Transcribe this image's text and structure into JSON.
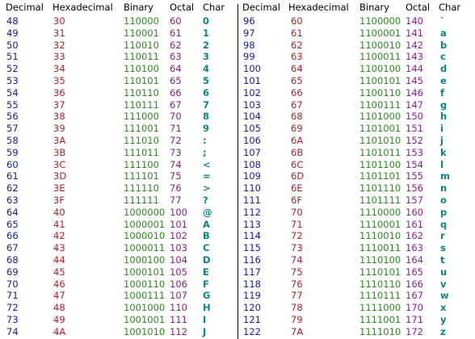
{
  "headers": {
    "decimal": "Decimal",
    "hexadecimal": "Hexadecimal",
    "binary": "Binary",
    "octal": "Octal",
    "char": "Char"
  },
  "left_rows": [
    {
      "dec": "48",
      "hex": "30",
      "bin": "110000",
      "oct": "60",
      "chr": "0"
    },
    {
      "dec": "49",
      "hex": "31",
      "bin": "110001",
      "oct": "61",
      "chr": "1"
    },
    {
      "dec": "50",
      "hex": "32",
      "bin": "110010",
      "oct": "62",
      "chr": "2"
    },
    {
      "dec": "51",
      "hex": "33",
      "bin": "110011",
      "oct": "63",
      "chr": "3"
    },
    {
      "dec": "52",
      "hex": "34",
      "bin": "110100",
      "oct": "64",
      "chr": "4"
    },
    {
      "dec": "53",
      "hex": "35",
      "bin": "110101",
      "oct": "65",
      "chr": "5"
    },
    {
      "dec": "54",
      "hex": "36",
      "bin": "110110",
      "oct": "66",
      "chr": "6"
    },
    {
      "dec": "55",
      "hex": "37",
      "bin": "110111",
      "oct": "67",
      "chr": "7"
    },
    {
      "dec": "56",
      "hex": "38",
      "bin": "111000",
      "oct": "70",
      "chr": "8"
    },
    {
      "dec": "57",
      "hex": "39",
      "bin": "111001",
      "oct": "71",
      "chr": "9"
    },
    {
      "dec": "58",
      "hex": "3A",
      "bin": "111010",
      "oct": "72",
      "chr": ":"
    },
    {
      "dec": "59",
      "hex": "3B",
      "bin": "111011",
      "oct": "73",
      "chr": ";"
    },
    {
      "dec": "60",
      "hex": "3C",
      "bin": "111100",
      "oct": "74",
      "chr": "<"
    },
    {
      "dec": "61",
      "hex": "3D",
      "bin": "111101",
      "oct": "75",
      "chr": "="
    },
    {
      "dec": "62",
      "hex": "3E",
      "bin": "111110",
      "oct": "76",
      "chr": ">"
    },
    {
      "dec": "63",
      "hex": "3F",
      "bin": "111111",
      "oct": "77",
      "chr": "?"
    },
    {
      "dec": "64",
      "hex": "40",
      "bin": "1000000",
      "oct": "100",
      "chr": "@"
    },
    {
      "dec": "65",
      "hex": "41",
      "bin": "1000001",
      "oct": "101",
      "chr": "A"
    },
    {
      "dec": "66",
      "hex": "42",
      "bin": "1000010",
      "oct": "102",
      "chr": "B"
    },
    {
      "dec": "67",
      "hex": "43",
      "bin": "1000011",
      "oct": "103",
      "chr": "C"
    },
    {
      "dec": "68",
      "hex": "44",
      "bin": "1000100",
      "oct": "104",
      "chr": "D"
    },
    {
      "dec": "69",
      "hex": "45",
      "bin": "1000101",
      "oct": "105",
      "chr": "E"
    },
    {
      "dec": "70",
      "hex": "46",
      "bin": "1000110",
      "oct": "106",
      "chr": "F"
    },
    {
      "dec": "71",
      "hex": "47",
      "bin": "1000111",
      "oct": "107",
      "chr": "G"
    },
    {
      "dec": "72",
      "hex": "48",
      "bin": "1001000",
      "oct": "110",
      "chr": "H"
    },
    {
      "dec": "73",
      "hex": "49",
      "bin": "1001001",
      "oct": "111",
      "chr": "I"
    },
    {
      "dec": "74",
      "hex": "4A",
      "bin": "1001010",
      "oct": "112",
      "chr": "J"
    }
  ],
  "right_rows": [
    {
      "dec": "96",
      "hex": "60",
      "bin": "1100000",
      "oct": "140",
      "chr": "`"
    },
    {
      "dec": "97",
      "hex": "61",
      "bin": "1100001",
      "oct": "141",
      "chr": "a"
    },
    {
      "dec": "98",
      "hex": "62",
      "bin": "1100010",
      "oct": "142",
      "chr": "b"
    },
    {
      "dec": "99",
      "hex": "63",
      "bin": "1100011",
      "oct": "143",
      "chr": "c"
    },
    {
      "dec": "100",
      "hex": "64",
      "bin": "1100100",
      "oct": "144",
      "chr": "d"
    },
    {
      "dec": "101",
      "hex": "65",
      "bin": "1100101",
      "oct": "145",
      "chr": "e"
    },
    {
      "dec": "102",
      "hex": "66",
      "bin": "1100110",
      "oct": "146",
      "chr": "f"
    },
    {
      "dec": "103",
      "hex": "67",
      "bin": "1100111",
      "oct": "147",
      "chr": "g"
    },
    {
      "dec": "104",
      "hex": "68",
      "bin": "1101000",
      "oct": "150",
      "chr": "h"
    },
    {
      "dec": "105",
      "hex": "69",
      "bin": "1101001",
      "oct": "151",
      "chr": "i"
    },
    {
      "dec": "106",
      "hex": "6A",
      "bin": "1101010",
      "oct": "152",
      "chr": "j"
    },
    {
      "dec": "107",
      "hex": "6B",
      "bin": "1101011",
      "oct": "153",
      "chr": "k"
    },
    {
      "dec": "108",
      "hex": "6C",
      "bin": "1101100",
      "oct": "154",
      "chr": "l"
    },
    {
      "dec": "109",
      "hex": "6D",
      "bin": "1101101",
      "oct": "155",
      "chr": "m"
    },
    {
      "dec": "110",
      "hex": "6E",
      "bin": "1101110",
      "oct": "156",
      "chr": "n"
    },
    {
      "dec": "111",
      "hex": "6F",
      "bin": "1101111",
      "oct": "157",
      "chr": "o"
    },
    {
      "dec": "112",
      "hex": "70",
      "bin": "1110000",
      "oct": "160",
      "chr": "p"
    },
    {
      "dec": "113",
      "hex": "71",
      "bin": "1110001",
      "oct": "161",
      "chr": "q"
    },
    {
      "dec": "114",
      "hex": "72",
      "bin": "1110010",
      "oct": "162",
      "chr": "r"
    },
    {
      "dec": "115",
      "hex": "73",
      "bin": "1110011",
      "oct": "163",
      "chr": "s"
    },
    {
      "dec": "116",
      "hex": "74",
      "bin": "1110100",
      "oct": "164",
      "chr": "t"
    },
    {
      "dec": "117",
      "hex": "75",
      "bin": "1110101",
      "oct": "165",
      "chr": "u"
    },
    {
      "dec": "118",
      "hex": "76",
      "bin": "1110110",
      "oct": "166",
      "chr": "v"
    },
    {
      "dec": "119",
      "hex": "77",
      "bin": "1110111",
      "oct": "167",
      "chr": "w"
    },
    {
      "dec": "120",
      "hex": "78",
      "bin": "1111000",
      "oct": "170",
      "chr": "x"
    },
    {
      "dec": "121",
      "hex": "79",
      "bin": "1111001",
      "oct": "171",
      "chr": "y"
    },
    {
      "dec": "122",
      "hex": "7A",
      "bin": "1111010",
      "oct": "172",
      "chr": "z"
    }
  ],
  "colors": {
    "decimal": "#1a1a9e",
    "hexadecimal": "#b01e2e",
    "binary": "#2a8a1e",
    "octal": "#8a1e8a",
    "char": "#0a8585"
  }
}
